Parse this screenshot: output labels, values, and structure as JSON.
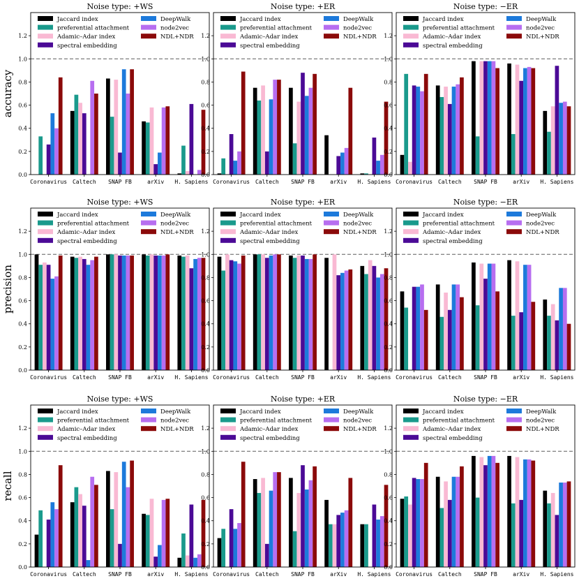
{
  "rows": [
    "accuracy",
    "precision",
    "recall"
  ],
  "colors": {
    "Jaccard index": "#000000",
    "preferential attachment": "#1a9a8c",
    "Adamic-Adar index": "#f9b9d3",
    "spectral embedding": "#4b0a96",
    "DeepWalk": "#1d7adb",
    "node2vec": "#b76ef0",
    "NDL+NDR": "#8b0a0a"
  },
  "chart_data": [
    {
      "type": "bar",
      "title": "Noise type: +WS",
      "ylabel": "accuracy",
      "ylim": [
        0,
        1.4
      ],
      "yticks": [
        "0.0",
        "0.2",
        "0.4",
        "0.6",
        "0.8",
        "1.0",
        "1.2"
      ],
      "reference_line": 1.0,
      "categories": [
        "Coronavirus",
        "Caltech",
        "SNAP FB",
        "arXiv",
        "H. Sapiens"
      ],
      "legend_labels": [
        "Jaccard index",
        "preferential attachment",
        "Adamic–Adar index",
        "spectral embedding",
        "DeepWalk",
        "node2vec",
        "NDL+NDR"
      ],
      "series": [
        {
          "name": "Jaccard index",
          "values": [
            0.0,
            0.55,
            0.83,
            0.46,
            0.01
          ]
        },
        {
          "name": "preferential attachment",
          "values": [
            0.33,
            0.69,
            0.5,
            0.45,
            0.25
          ]
        },
        {
          "name": "Adamic-Adar index",
          "values": [
            0.0,
            0.62,
            0.82,
            0.58,
            0.03
          ]
        },
        {
          "name": "spectral embedding",
          "values": [
            0.26,
            0.53,
            0.19,
            0.09,
            0.61
          ]
        },
        {
          "name": "DeepWalk",
          "values": [
            0.53,
            0.0,
            0.91,
            0.19,
            0.0
          ]
        },
        {
          "name": "node2vec",
          "values": [
            0.4,
            0.81,
            0.7,
            0.58,
            0.04
          ]
        },
        {
          "name": "NDL+NDR",
          "values": [
            0.84,
            0.7,
            0.91,
            0.59,
            0.56
          ]
        }
      ]
    },
    {
      "type": "bar",
      "title": "Noise type: +ER",
      "ylabel": "",
      "ylim": [
        0,
        1.4
      ],
      "yticks": [
        "0.0",
        "0.2",
        "0.4",
        "0.6",
        "0.8",
        "1.0",
        "1.2"
      ],
      "reference_line": 1.0,
      "categories": [
        "Coronavirus",
        "Caltech",
        "SNAP FB",
        "arXiv",
        "H. Sapiens"
      ],
      "legend_labels": [
        "Jaccard index",
        "preferential attachment",
        "Adamic–Adar index",
        "spectral embedding",
        "DeepWalk",
        "node2vec",
        "NDL+NDR"
      ],
      "series": [
        {
          "name": "Jaccard index",
          "values": [
            0.01,
            0.75,
            0.75,
            0.34,
            0.01
          ]
        },
        {
          "name": "preferential attachment",
          "values": [
            0.14,
            0.64,
            0.27,
            0.0,
            0.01
          ]
        },
        {
          "name": "Adamic-Adar index",
          "values": [
            0.0,
            0.77,
            0.63,
            0.0,
            0.0
          ]
        },
        {
          "name": "spectral embedding",
          "values": [
            0.35,
            0.2,
            0.88,
            0.16,
            0.32
          ]
        },
        {
          "name": "DeepWalk",
          "values": [
            0.12,
            0.65,
            0.68,
            0.19,
            0.12
          ]
        },
        {
          "name": "node2vec",
          "values": [
            0.2,
            0.82,
            0.75,
            0.23,
            0.17
          ]
        },
        {
          "name": "NDL+NDR",
          "values": [
            0.89,
            0.82,
            0.87,
            0.75,
            0.63
          ]
        }
      ]
    },
    {
      "type": "bar",
      "title": "Noise type: −ER",
      "ylabel": "",
      "ylim": [
        0,
        1.4
      ],
      "yticks": [
        "0.0",
        "0.2",
        "0.4",
        "0.6",
        "0.8",
        "1.0",
        "1.2"
      ],
      "reference_line": 1.0,
      "categories": [
        "Coronavirus",
        "Caltech",
        "SNAP FB",
        "arXiv",
        "H. Sapiens"
      ],
      "legend_labels": [
        "Jaccard index",
        "preferential attachment",
        "Adamic–Adar index",
        "spectral embedding",
        "DeepWalk",
        "node2vec",
        "NDL+NDR"
      ],
      "series": [
        {
          "name": "Jaccard index",
          "values": [
            0.17,
            0.77,
            0.98,
            0.96,
            0.55
          ]
        },
        {
          "name": "preferential attachment",
          "values": [
            0.87,
            0.67,
            0.33,
            0.35,
            0.37
          ]
        },
        {
          "name": "Adamic-Adar index",
          "values": [
            0.11,
            0.76,
            0.98,
            0.95,
            0.59
          ]
        },
        {
          "name": "spectral embedding",
          "values": [
            0.77,
            0.61,
            0.98,
            0.81,
            0.94
          ]
        },
        {
          "name": "DeepWalk",
          "values": [
            0.76,
            0.76,
            0.98,
            0.92,
            0.62
          ]
        },
        {
          "name": "node2vec",
          "values": [
            0.72,
            0.78,
            0.98,
            0.93,
            0.63
          ]
        },
        {
          "name": "NDL+NDR",
          "values": [
            0.87,
            0.84,
            0.92,
            0.92,
            0.59
          ]
        }
      ]
    },
    {
      "type": "bar",
      "title": "Noise type: +WS",
      "ylabel": "precision",
      "ylim": [
        0,
        1.4
      ],
      "yticks": [
        "0.0",
        "0.2",
        "0.4",
        "0.6",
        "0.8",
        "1.0",
        "1.2"
      ],
      "reference_line": 1.0,
      "categories": [
        "Coronavirus",
        "Caltech",
        "SNAP FB",
        "arXiv",
        "H. Sapiens"
      ],
      "legend_labels": [
        "Jaccard index",
        "preferential attachment",
        "Adamic–Adar index",
        "spectral embedding",
        "DeepWalk",
        "node2vec",
        "NDL+NDR"
      ],
      "series": [
        {
          "name": "Jaccard index",
          "values": [
            1.0,
            0.98,
            1.0,
            1.0,
            0.99
          ]
        },
        {
          "name": "preferential attachment",
          "values": [
            0.91,
            0.97,
            1.0,
            0.99,
            0.98
          ]
        },
        {
          "name": "Adamic-Adar index",
          "values": [
            0.93,
            0.98,
            1.0,
            1.0,
            0.99
          ]
        },
        {
          "name": "spectral embedding",
          "values": [
            0.91,
            0.96,
            0.99,
            0.99,
            0.88
          ]
        },
        {
          "name": "DeepWalk",
          "values": [
            0.79,
            0.91,
            0.99,
            0.99,
            0.96
          ]
        },
        {
          "name": "node2vec",
          "values": [
            0.81,
            0.95,
            0.99,
            0.99,
            0.97
          ]
        },
        {
          "name": "NDL+NDR",
          "values": [
            0.99,
            0.98,
            0.99,
            1.0,
            0.97
          ]
        }
      ]
    },
    {
      "type": "bar",
      "title": "Noise type: +ER",
      "ylabel": "",
      "ylim": [
        0,
        1.4
      ],
      "yticks": [
        "0.0",
        "0.2",
        "0.4",
        "0.6",
        "0.8",
        "1.0",
        "1.2"
      ],
      "reference_line": 1.0,
      "categories": [
        "Coronavirus",
        "Caltech",
        "SNAP FB",
        "arXiv",
        "H. Sapiens"
      ],
      "legend_labels": [
        "Jaccard index",
        "preferential attachment",
        "Adamic–Adar index",
        "spectral embedding",
        "DeepWalk",
        "node2vec",
        "NDL+NDR"
      ],
      "series": [
        {
          "name": "Jaccard index",
          "values": [
            0.98,
            1.0,
            0.99,
            0.97,
            0.9
          ]
        },
        {
          "name": "preferential attachment",
          "values": [
            0.86,
            1.0,
            0.97,
            0.0,
            0.83
          ]
        },
        {
          "name": "Adamic-Adar index",
          "values": [
            1.0,
            1.0,
            0.99,
            1.0,
            0.95
          ]
        },
        {
          "name": "spectral embedding",
          "values": [
            0.95,
            0.97,
            0.99,
            0.82,
            0.9
          ]
        },
        {
          "name": "DeepWalk",
          "values": [
            0.94,
            0.99,
            0.96,
            0.84,
            0.8
          ]
        },
        {
          "name": "node2vec",
          "values": [
            0.92,
            1.0,
            0.96,
            0.86,
            0.83
          ]
        },
        {
          "name": "NDL+NDR",
          "values": [
            0.99,
            1.0,
            1.0,
            0.87,
            0.88
          ]
        }
      ]
    },
    {
      "type": "bar",
      "title": "Noise type: −ER",
      "ylabel": "",
      "ylim": [
        0,
        1.4
      ],
      "yticks": [
        "0.0",
        "0.2",
        "0.4",
        "0.6",
        "0.8",
        "1.0",
        "1.2"
      ],
      "reference_line": 1.0,
      "categories": [
        "Coronavirus",
        "Caltech",
        "SNAP FB",
        "arXiv",
        "H. Sapiens"
      ],
      "legend_labels": [
        "Jaccard index",
        "preferential attachment",
        "Adamic–Adar index",
        "spectral embedding",
        "DeepWalk",
        "node2vec",
        "NDL+NDR"
      ],
      "series": [
        {
          "name": "Jaccard index",
          "values": [
            0.68,
            0.74,
            0.93,
            0.95,
            0.61
          ]
        },
        {
          "name": "preferential attachment",
          "values": [
            0.54,
            0.46,
            0.56,
            0.47,
            0.47
          ]
        },
        {
          "name": "Adamic-Adar index",
          "values": [
            0.0,
            0.67,
            0.92,
            0.94,
            0.57
          ]
        },
        {
          "name": "spectral embedding",
          "values": [
            0.72,
            0.52,
            0.79,
            0.5,
            0.43
          ]
        },
        {
          "name": "DeepWalk",
          "values": [
            0.72,
            0.74,
            0.92,
            0.91,
            0.71
          ]
        },
        {
          "name": "node2vec",
          "values": [
            0.74,
            0.74,
            0.92,
            0.91,
            0.71
          ]
        },
        {
          "name": "NDL+NDR",
          "values": [
            0.52,
            0.63,
            0.68,
            0.59,
            0.4
          ]
        }
      ]
    },
    {
      "type": "bar",
      "title": "Noise type: +WS",
      "ylabel": "recall",
      "ylim": [
        0,
        1.4
      ],
      "yticks": [
        "0.0",
        "0.2",
        "0.4",
        "0.6",
        "0.8",
        "1.0",
        "1.2"
      ],
      "reference_line": 1.0,
      "categories": [
        "Coronavirus",
        "Caltech",
        "SNAP FB",
        "arXiv",
        "H. Sapiens"
      ],
      "legend_labels": [
        "Jaccard index",
        "preferential attachment",
        "Adamic–Adar index",
        "spectral embedding",
        "DeepWalk",
        "node2vec",
        "NDL+NDR"
      ],
      "series": [
        {
          "name": "Jaccard index",
          "values": [
            0.28,
            0.56,
            0.83,
            0.46,
            0.08
          ]
        },
        {
          "name": "preferential attachment",
          "values": [
            0.49,
            0.69,
            0.5,
            0.45,
            0.29
          ]
        },
        {
          "name": "Adamic-Adar index",
          "values": [
            0.0,
            0.63,
            0.82,
            0.59,
            0.1
          ]
        },
        {
          "name": "spectral embedding",
          "values": [
            0.41,
            0.53,
            0.2,
            0.09,
            0.54
          ]
        },
        {
          "name": "DeepWalk",
          "values": [
            0.56,
            0.06,
            0.91,
            0.19,
            0.08
          ]
        },
        {
          "name": "node2vec",
          "values": [
            0.5,
            0.78,
            0.69,
            0.58,
            0.11
          ]
        },
        {
          "name": "NDL+NDR",
          "values": [
            0.88,
            0.71,
            0.92,
            0.59,
            0.58
          ]
        }
      ]
    },
    {
      "type": "bar",
      "title": "Noise type: +ER",
      "ylabel": "",
      "ylim": [
        0,
        1.4
      ],
      "yticks": [
        "0.0",
        "0.2",
        "0.4",
        "0.6",
        "0.8",
        "1.0",
        "1.2"
      ],
      "reference_line": 1.0,
      "categories": [
        "Coronavirus",
        "Caltech",
        "SNAP FB",
        "arXiv",
        "H. Sapiens"
      ],
      "legend_labels": [
        "Jaccard index",
        "preferential attachment",
        "Adamic–Adar index",
        "spectral embedding",
        "DeepWalk",
        "node2vec",
        "NDL+NDR"
      ],
      "series": [
        {
          "name": "Jaccard index",
          "values": [
            0.25,
            0.76,
            0.77,
            0.58,
            0.37
          ]
        },
        {
          "name": "preferential attachment",
          "values": [
            0.33,
            0.64,
            0.31,
            0.37,
            0.37
          ]
        },
        {
          "name": "Adamic-Adar index",
          "values": [
            0.0,
            0.77,
            0.64,
            0.37,
            0.0
          ]
        },
        {
          "name": "spectral embedding",
          "values": [
            0.5,
            0.2,
            0.88,
            0.45,
            0.54
          ]
        },
        {
          "name": "DeepWalk",
          "values": [
            0.33,
            0.66,
            0.67,
            0.47,
            0.41
          ]
        },
        {
          "name": "node2vec",
          "values": [
            0.38,
            0.82,
            0.75,
            0.49,
            0.44
          ]
        },
        {
          "name": "NDL+NDR",
          "values": [
            0.91,
            0.82,
            0.87,
            0.77,
            0.71
          ]
        }
      ]
    },
    {
      "type": "bar",
      "title": "Noise type: −ER",
      "ylabel": "",
      "ylim": [
        0,
        1.4
      ],
      "yticks": [
        "0.0",
        "0.2",
        "0.4",
        "0.6",
        "0.8",
        "1.0",
        "1.2"
      ],
      "reference_line": 1.0,
      "categories": [
        "Coronavirus",
        "Caltech",
        "SNAP FB",
        "arXiv",
        "H. Sapiens"
      ],
      "legend_labels": [
        "Jaccard index",
        "preferential attachment",
        "Adamic–Adar index",
        "spectral embedding",
        "DeepWalk",
        "node2vec",
        "NDL+NDR"
      ],
      "series": [
        {
          "name": "Jaccard index",
          "values": [
            0.59,
            0.78,
            0.96,
            0.96,
            0.66
          ]
        },
        {
          "name": "preferential attachment",
          "values": [
            0.61,
            0.51,
            0.6,
            0.55,
            0.55
          ]
        },
        {
          "name": "Adamic-Adar index",
          "values": [
            0.54,
            0.74,
            0.95,
            0.95,
            0.64
          ]
        },
        {
          "name": "spectral embedding",
          "values": [
            0.77,
            0.58,
            0.88,
            0.58,
            0.45
          ]
        },
        {
          "name": "DeepWalk",
          "values": [
            0.76,
            0.78,
            0.96,
            0.93,
            0.73
          ]
        },
        {
          "name": "node2vec",
          "values": [
            0.76,
            0.78,
            0.96,
            0.93,
            0.73
          ]
        },
        {
          "name": "NDL+NDR",
          "values": [
            0.9,
            0.87,
            0.9,
            0.92,
            0.74
          ]
        }
      ]
    }
  ]
}
